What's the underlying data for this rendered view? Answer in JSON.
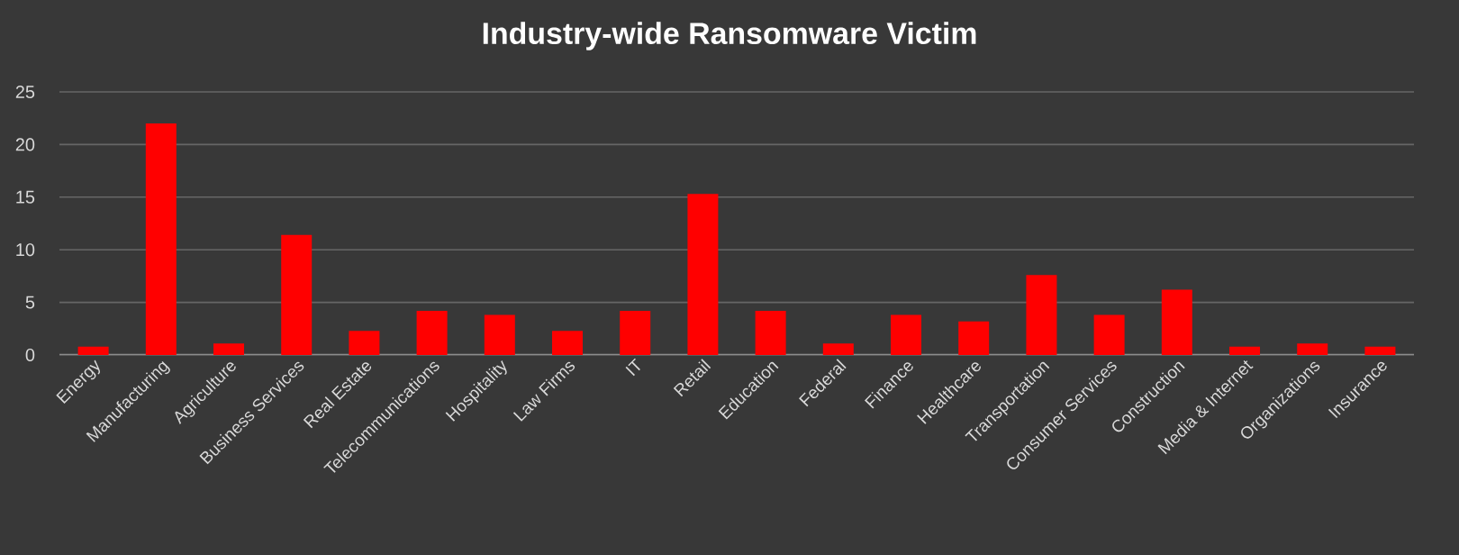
{
  "chart_data": {
    "type": "bar",
    "title": "Industry-wide Ransomware Victim",
    "categories": [
      "Energy",
      "Manufacturing",
      "Agriculture",
      "Business Services",
      "Real Estate",
      "Telecommunications",
      "Hospitality",
      "Law Firms",
      "IT",
      "Retail",
      "Education",
      "Federal",
      "Finance",
      "Healthcare",
      "Transportation",
      "Consumer Services",
      "Construction",
      "Media & Internet",
      "Organizations",
      "Insurance"
    ],
    "values": [
      0.8,
      22.0,
      1.1,
      11.4,
      2.3,
      4.2,
      3.8,
      2.3,
      4.2,
      15.3,
      4.2,
      1.1,
      3.8,
      3.2,
      7.6,
      3.8,
      6.2,
      0.8,
      1.1,
      0.8
    ],
    "color": "#ff0000",
    "ylim": [
      0,
      25
    ],
    "yticks": [
      0,
      5,
      10,
      15,
      20,
      25
    ],
    "grid": "y"
  }
}
